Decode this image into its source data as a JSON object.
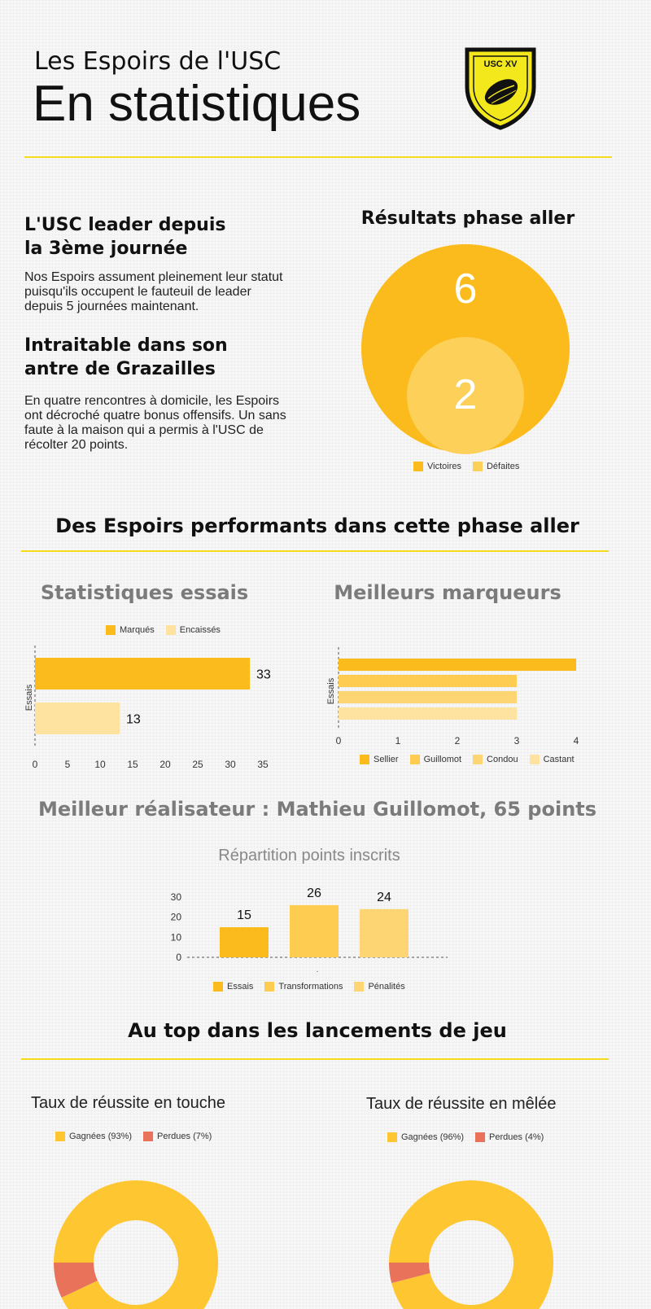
{
  "header": {
    "subtitle": "Les Espoirs de l'USC",
    "title": "En statistiques",
    "logo_text": "USC XV"
  },
  "intro": {
    "block1_title_l1": "L'USC leader depuis",
    "block1_title_l2": "la 3ème journée",
    "block1_text": "Nos Espoirs assument pleinement leur statut puisqu'ils occupent le fauteuil de leader depuis 5 journées maintenant.",
    "block2_title_l1": "Intraitable dans son",
    "block2_title_l2": "antre de Grazailles",
    "block2_text": "En quatre rencontres à domicile, les Espoirs ont décroché quatre bonus offensifs. Un sans faute à la maison qui a permis à l'USC de récolter 20 points."
  },
  "colors": {
    "yellow1": "#fbbb1c",
    "yellow2": "#fdcc50",
    "yellow3": "#fdd673",
    "yellow4": "#fee3a0",
    "red": "#e8735a",
    "rule": "#f5dc1a"
  },
  "sections": {
    "perf_title": "Des Espoirs performants dans cette phase aller",
    "essais_title": "Statistiques essais",
    "marqueurs_title": "Meilleurs marqueurs",
    "realisateur_title": "Meilleur réalisateur : Mathieu Guillomot, 65 points",
    "lancements_title": "Au top dans les lancements de jeu"
  },
  "chart_data": [
    {
      "type": "bubble",
      "title": "Résultats phase aller",
      "series": [
        {
          "name": "Victoires",
          "value": 6
        },
        {
          "name": "Défaites",
          "value": 2
        }
      ]
    },
    {
      "type": "bar",
      "title": "Statistiques essais",
      "orientation": "horizontal",
      "ylabel": "Essais",
      "xlim": [
        0,
        35
      ],
      "xticks": [
        "0",
        "5",
        "10",
        "15",
        "20",
        "25",
        "30",
        "35"
      ],
      "series": [
        {
          "name": "Marqués",
          "value": 33
        },
        {
          "name": "Encaissés",
          "value": 13
        }
      ]
    },
    {
      "type": "bar",
      "title": "Meilleurs marqueurs",
      "orientation": "horizontal",
      "ylabel": "Essais",
      "xlim": [
        0,
        4
      ],
      "xticks": [
        "0",
        "1",
        "2",
        "3",
        "4"
      ],
      "series": [
        {
          "name": "Sellier",
          "value": 4
        },
        {
          "name": "Guillomot",
          "value": 3
        },
        {
          "name": "Condou",
          "value": 3
        },
        {
          "name": "Castant",
          "value": 3
        }
      ]
    },
    {
      "type": "bar",
      "title": "Répartition points inscrits",
      "orientation": "vertical",
      "ylim": [
        0,
        30
      ],
      "yticks": [
        "0",
        "10",
        "20",
        "30"
      ],
      "xlabel": ".",
      "series": [
        {
          "name": "Essais",
          "value": 15
        },
        {
          "name": "Transformations",
          "value": 26
        },
        {
          "name": "Pénalités",
          "value": 24
        }
      ]
    },
    {
      "type": "pie",
      "title": "Taux de réussite en touche",
      "series": [
        {
          "name": "Gagnées (93%)",
          "value": 93
        },
        {
          "name": "Perdues (7%)",
          "value": 7
        }
      ]
    },
    {
      "type": "pie",
      "title": "Taux de réussite en mêlée",
      "series": [
        {
          "name": "Gagnées (96%)",
          "value": 96
        },
        {
          "name": "Perdues (4%)",
          "value": 4
        }
      ]
    }
  ]
}
